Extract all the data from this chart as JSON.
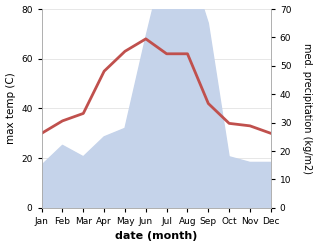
{
  "months": [
    "Jan",
    "Feb",
    "Mar",
    "Apr",
    "May",
    "Jun",
    "Jul",
    "Aug",
    "Sep",
    "Oct",
    "Nov",
    "Dec"
  ],
  "temperature": [
    30,
    35,
    38,
    55,
    63,
    68,
    62,
    62,
    42,
    34,
    33,
    30
  ],
  "precipitation": [
    15,
    22,
    18,
    25,
    28,
    60,
    90,
    88,
    65,
    18,
    16,
    16
  ],
  "temp_color": "#c0504d",
  "precip_fill_color": "#c5d3ea",
  "temp_ylim": [
    0,
    80
  ],
  "precip_ylim": [
    0,
    70
  ],
  "temp_yticks": [
    0,
    20,
    40,
    60,
    80
  ],
  "precip_yticks": [
    0,
    10,
    20,
    30,
    40,
    50,
    60,
    70
  ],
  "xlabel": "date (month)",
  "ylabel_left": "max temp (C)",
  "ylabel_right": "med. precipitation (kg/m2)",
  "background_color": "#ffffff",
  "linewidth": 2.0,
  "grid_color": "#dddddd"
}
